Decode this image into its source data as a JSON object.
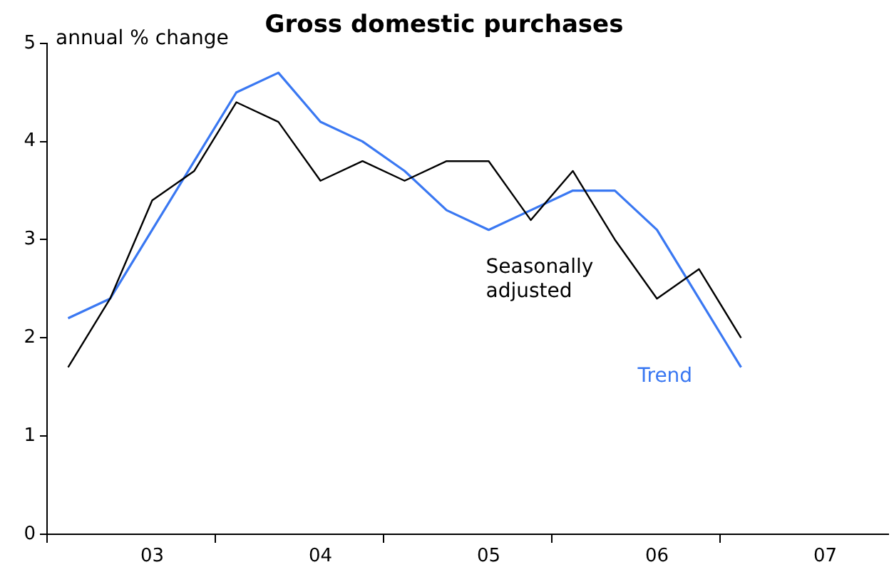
{
  "chart_data": {
    "type": "line",
    "title": "Gross domestic purchases",
    "ylabel": "annual % change",
    "categories": [
      null,
      null,
      "03",
      null,
      null,
      null,
      "04",
      null,
      null,
      null,
      "05",
      null,
      null,
      null,
      "06",
      null,
      null,
      null,
      "07",
      null
    ],
    "ylim": [
      0,
      5
    ],
    "yticks": [
      0,
      1,
      2,
      3,
      4,
      5
    ],
    "series": [
      {
        "name": "Seasonally adjusted",
        "color": "#000000",
        "values": [
          1.7,
          2.4,
          3.4,
          3.7,
          4.4,
          4.2,
          3.6,
          3.8,
          3.6,
          3.8,
          3.8,
          3.2,
          3.7,
          3.0,
          2.4,
          2.7,
          2.0,
          null,
          null,
          null
        ]
      },
      {
        "name": "Trend",
        "color": "#3a78f2",
        "values": [
          2.2,
          2.4,
          3.1,
          3.8,
          4.5,
          4.7,
          4.2,
          4.0,
          3.7,
          3.3,
          3.1,
          3.3,
          3.5,
          3.5,
          3.1,
          2.4,
          1.7,
          null,
          null,
          null
        ]
      }
    ],
    "grid": false,
    "legend": false,
    "marker": "none",
    "line_style": "solid"
  }
}
